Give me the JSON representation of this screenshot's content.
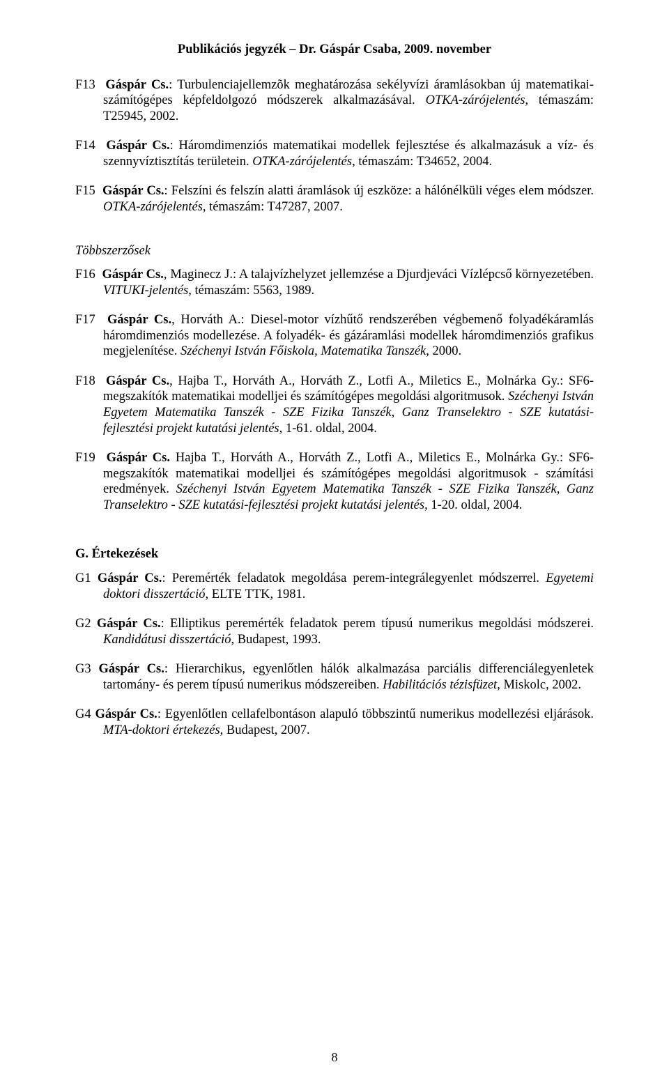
{
  "header": "Publikációs jegyzék – Dr. Gáspár Csaba, 2009. november",
  "entries": {
    "f13": {
      "code": "F13",
      "author": "Gáspár Cs.",
      "title_a": ": Turbulenciajellemzõk meghatározása sekélyvízi áramlásokban új matematikai-számítógépes képfeldolgozó módszerek alkalmazásával. ",
      "src": "OTKA-zárójelentés",
      "tail": ", témaszám: T25945, 2002."
    },
    "f14": {
      "code": "F14",
      "author": "Gáspár Cs.",
      "title_a": ": Háromdimenziós matematikai modellek fejlesztése és alkalmazásuk a víz- és szennyvíztisztítás területein. ",
      "src": "OTKA-zárójelentés",
      "tail": ", témaszám: T34652, 2004."
    },
    "f15": {
      "code": "F15",
      "author": "Gáspár Cs.",
      "title_a": ": Felszíni és felszín alatti áramlások új eszköze: a hálónélküli véges elem módszer. ",
      "src": "OTKA-zárójelentés",
      "tail": ", témaszám: T47287, 2007."
    },
    "f16": {
      "code": "F16",
      "author": "Gáspár Cs.",
      "title_a": ", Maginecz J.: A talajvízhelyzet jellemzése a Djurdjeváci Vízlépcső környezetében. ",
      "src": "VITUKI-jelentés",
      "tail": ", témaszám: 5563, 1989."
    },
    "f17": {
      "code": "F17",
      "author": "Gáspár Cs.",
      "title_a": ", Horváth A.: Diesel-motor vízhűtő rendszerében végbemenő folyadékáramlás háromdimenziós modellezése. A folyadék- és gázáramlási modellek háromdimenziós grafikus megjelenítése. ",
      "src": "Széchenyi István Főiskola, Matematika Tanszék",
      "tail": ", 2000."
    },
    "f18": {
      "code": "F18",
      "author": "Gáspár Cs.",
      "title_a": ", Hajba T., Horváth A., Horváth Z., Lotfi A., Miletics E., Molnárka Gy.: SF6-megszakítók matematikai modelljei és számítógépes megoldási algoritmusok. ",
      "src": "Széchenyi István Egyetem Matematika Tanszék - SZE Fizika Tanszék, Ganz Transelektro - SZE kutatási-fejlesztési projekt kutatási jelentés",
      "tail": ", 1-61. oldal, 2004."
    },
    "f19": {
      "code": "F19",
      "author": "Gáspár Cs.",
      "title_a": " Hajba T., Horváth A., Horváth Z., Lotfi A., Miletics E., Molnárka Gy.: SF6-megszakítók matematikai modelljei és számítógépes megoldási algoritmusok - számítási eredmények. ",
      "src": "Széchenyi István Egyetem Matematika Tanszék - SZE Fizika Tanszék, Ganz Transelektro - SZE kutatási-fejlesztési projekt kutatási jelentés",
      "tail": ", 1-20. oldal, 2004."
    },
    "g1": {
      "code": "G1",
      "author": "Gáspár Cs.",
      "title_a": ": Peremérték feladatok megoldása perem-integrálegyenlet módszerrel. ",
      "src": "Egyetemi doktori disszertáció",
      "tail": ", ELTE TTK, 1981."
    },
    "g2": {
      "code": "G2",
      "author": "Gáspár Cs.",
      "title_a": ": Elliptikus peremérték feladatok perem típusú numerikus megoldási módszerei. ",
      "src": "Kandidátusi disszertáció",
      "tail": ", Budapest, 1993."
    },
    "g3": {
      "code": "G3",
      "author": "Gáspár Cs.",
      "title_a": ": Hierarchikus, egyenlőtlen hálók alkalmazása parciális differenciálegyenletek tartomány- és perem típusú numerikus módszereiben. ",
      "src": "Habilitációs tézisfüzet",
      "tail": ", Miskolc, 2002."
    },
    "g4": {
      "code": "G4",
      "author": "Gáspár Cs.",
      "title_a": ": Egyenlőtlen cellafelbontáson alapuló többszintű numerikus modellezési eljárások. ",
      "src": "MTA-doktori értekezés",
      "tail": ", Budapest, 2007."
    }
  },
  "sections": {
    "multi": "Többszerzősek",
    "g": "G. Értekezések"
  },
  "pagenum": "8"
}
